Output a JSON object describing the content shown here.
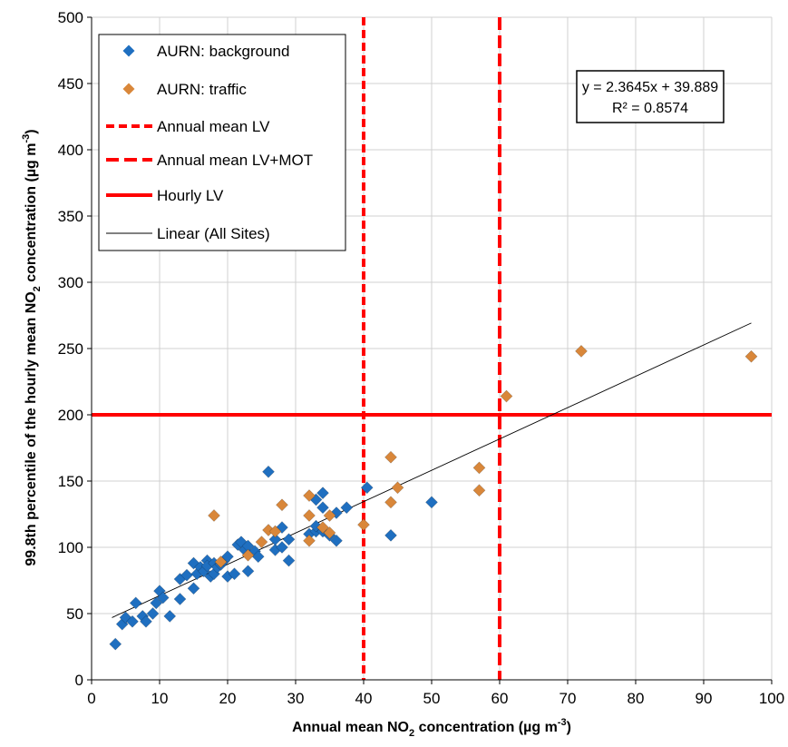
{
  "chart_data": {
    "type": "scatter",
    "xlabel": {
      "pre": "Annual mean NO",
      "sub": "2",
      "mid": " concentration (µg m",
      "sup": "-3",
      "post": ")"
    },
    "ylabel": {
      "pre": "99.8th percentile of the hourly mean NO",
      "sub": "2",
      "mid": " concentration (µg m",
      "sup": "-3",
      "post": ")"
    },
    "xlim": [
      0,
      100
    ],
    "ylim": [
      0,
      500
    ],
    "xticks": [
      0,
      10,
      20,
      30,
      40,
      50,
      60,
      70,
      80,
      90,
      100
    ],
    "yticks": [
      0,
      50,
      100,
      150,
      200,
      250,
      300,
      350,
      400,
      450,
      500
    ],
    "grid": true,
    "legend_position": "top-left",
    "colors": {
      "background": "#1F6FC0",
      "traffic": "#D9873A",
      "limit": "#FF0000",
      "trend": "#000000",
      "grid": "#D0D0D0"
    },
    "legend": [
      {
        "label": "AURN: background",
        "kind": "diamond",
        "color": "#1F6FC0"
      },
      {
        "label": "AURN: traffic",
        "kind": "diamond",
        "color": "#D9873A"
      },
      {
        "label": "Annual mean LV",
        "kind": "dashed",
        "color": "#FF0000"
      },
      {
        "label": "Annual mean LV+MOT",
        "kind": "longdash",
        "color": "#FF0000"
      },
      {
        "label": "Hourly LV",
        "kind": "solid",
        "color": "#FF0000"
      },
      {
        "label": "Linear (All Sites)",
        "kind": "thin",
        "color": "#000000"
      }
    ],
    "equation": {
      "line1": "y = 2.3645x + 39.889",
      "line2": "R² = 0.8574"
    },
    "trendline": {
      "slope": 2.3645,
      "intercept": 39.889,
      "x_range": [
        3,
        97
      ]
    },
    "reference_lines": {
      "annual_mean_lv_x": 40,
      "annual_mean_lv_mot_x": 60,
      "hourly_lv_y": 200
    },
    "series": [
      {
        "name": "AURN: background",
        "points": [
          [
            3.5,
            27
          ],
          [
            4.5,
            42
          ],
          [
            5,
            47
          ],
          [
            6,
            44
          ],
          [
            6.5,
            58
          ],
          [
            7.5,
            48
          ],
          [
            8,
            44
          ],
          [
            9,
            50
          ],
          [
            9.5,
            58
          ],
          [
            10,
            67
          ],
          [
            10.5,
            62
          ],
          [
            11.5,
            48
          ],
          [
            13,
            61
          ],
          [
            13,
            76
          ],
          [
            14,
            79
          ],
          [
            15,
            69
          ],
          [
            15,
            88
          ],
          [
            15.5,
            80
          ],
          [
            16,
            85
          ],
          [
            16.5,
            82
          ],
          [
            17,
            90
          ],
          [
            17,
            86
          ],
          [
            17.5,
            78
          ],
          [
            18,
            80
          ],
          [
            18,
            88
          ],
          [
            18.5,
            85
          ],
          [
            19,
            87
          ],
          [
            19.5,
            90
          ],
          [
            20,
            78
          ],
          [
            20,
            93
          ],
          [
            21,
            80
          ],
          [
            21.5,
            102
          ],
          [
            22,
            104
          ],
          [
            22.5,
            98
          ],
          [
            23,
            82
          ],
          [
            23,
            101
          ],
          [
            24,
            97
          ],
          [
            24.5,
            93
          ],
          [
            26,
            157
          ],
          [
            27,
            98
          ],
          [
            27,
            106
          ],
          [
            28,
            100
          ],
          [
            28,
            115
          ],
          [
            29,
            90
          ],
          [
            29,
            106
          ],
          [
            32,
            110
          ],
          [
            33,
            112
          ],
          [
            33,
            116
          ],
          [
            33,
            136
          ],
          [
            34,
            141
          ],
          [
            34,
            130
          ],
          [
            34,
            112
          ],
          [
            35,
            109
          ],
          [
            36,
            105
          ],
          [
            36,
            126
          ],
          [
            37.5,
            130
          ],
          [
            40.5,
            145
          ],
          [
            44,
            109
          ],
          [
            50,
            134
          ]
        ]
      },
      {
        "name": "AURN: traffic",
        "points": [
          [
            18,
            124
          ],
          [
            19,
            89
          ],
          [
            23,
            94
          ],
          [
            25,
            104
          ],
          [
            26,
            113
          ],
          [
            27,
            112
          ],
          [
            28,
            132
          ],
          [
            32,
            139
          ],
          [
            32,
            105
          ],
          [
            32,
            124
          ],
          [
            34,
            115
          ],
          [
            35,
            111
          ],
          [
            35,
            124
          ],
          [
            40,
            117
          ],
          [
            44,
            168
          ],
          [
            44,
            134
          ],
          [
            45,
            145
          ],
          [
            57,
            143
          ],
          [
            57,
            160
          ],
          [
            61,
            214
          ],
          [
            72,
            248
          ],
          [
            97,
            244
          ]
        ]
      }
    ]
  }
}
